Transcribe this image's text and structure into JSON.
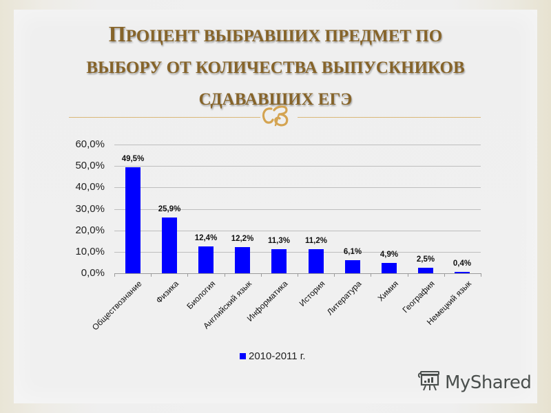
{
  "slide": {
    "title_line1_first": "П",
    "title_line1_rest": "роцент выбравших предмет по",
    "title_line2": "выбору от количества выпускников",
    "title_line3": "сдававших ЕГЭ",
    "ornament_glyph": "ꝏ",
    "colors": {
      "title": "#86642a",
      "ornament": "#d4a452",
      "bar": "#0000ff"
    }
  },
  "watermark": {
    "text": "MyShared",
    "icon": "presentation-board-icon"
  },
  "chart_data": {
    "type": "bar",
    "title": "Процент выбравших предмет по выбору от количества выпускников сдававших ЕГЭ",
    "xlabel": "",
    "ylabel": "",
    "ylim": [
      0,
      60
    ],
    "y_ticks": [
      "0,0%",
      "10,0%",
      "20,0%",
      "30,0%",
      "40,0%",
      "50,0%",
      "60,0%"
    ],
    "grid": true,
    "legend_position": "bottom",
    "categories": [
      "Обществознание",
      "Физика",
      "Биология",
      "Английский язык",
      "Информатика",
      "История",
      "Литература",
      "Химия",
      "География",
      "Немецкий язык"
    ],
    "series": [
      {
        "name": "2010-2011 г.",
        "color": "#0000ff",
        "values": [
          49.5,
          25.9,
          12.4,
          12.2,
          11.3,
          11.2,
          6.1,
          4.9,
          2.5,
          0.4
        ],
        "labels": [
          "49,5%",
          "25,9%",
          "12,4%",
          "12,2%",
          "11,3%",
          "11,2%",
          "6,1%",
          "4,9%",
          "2,5%",
          "0,4%"
        ]
      }
    ]
  }
}
